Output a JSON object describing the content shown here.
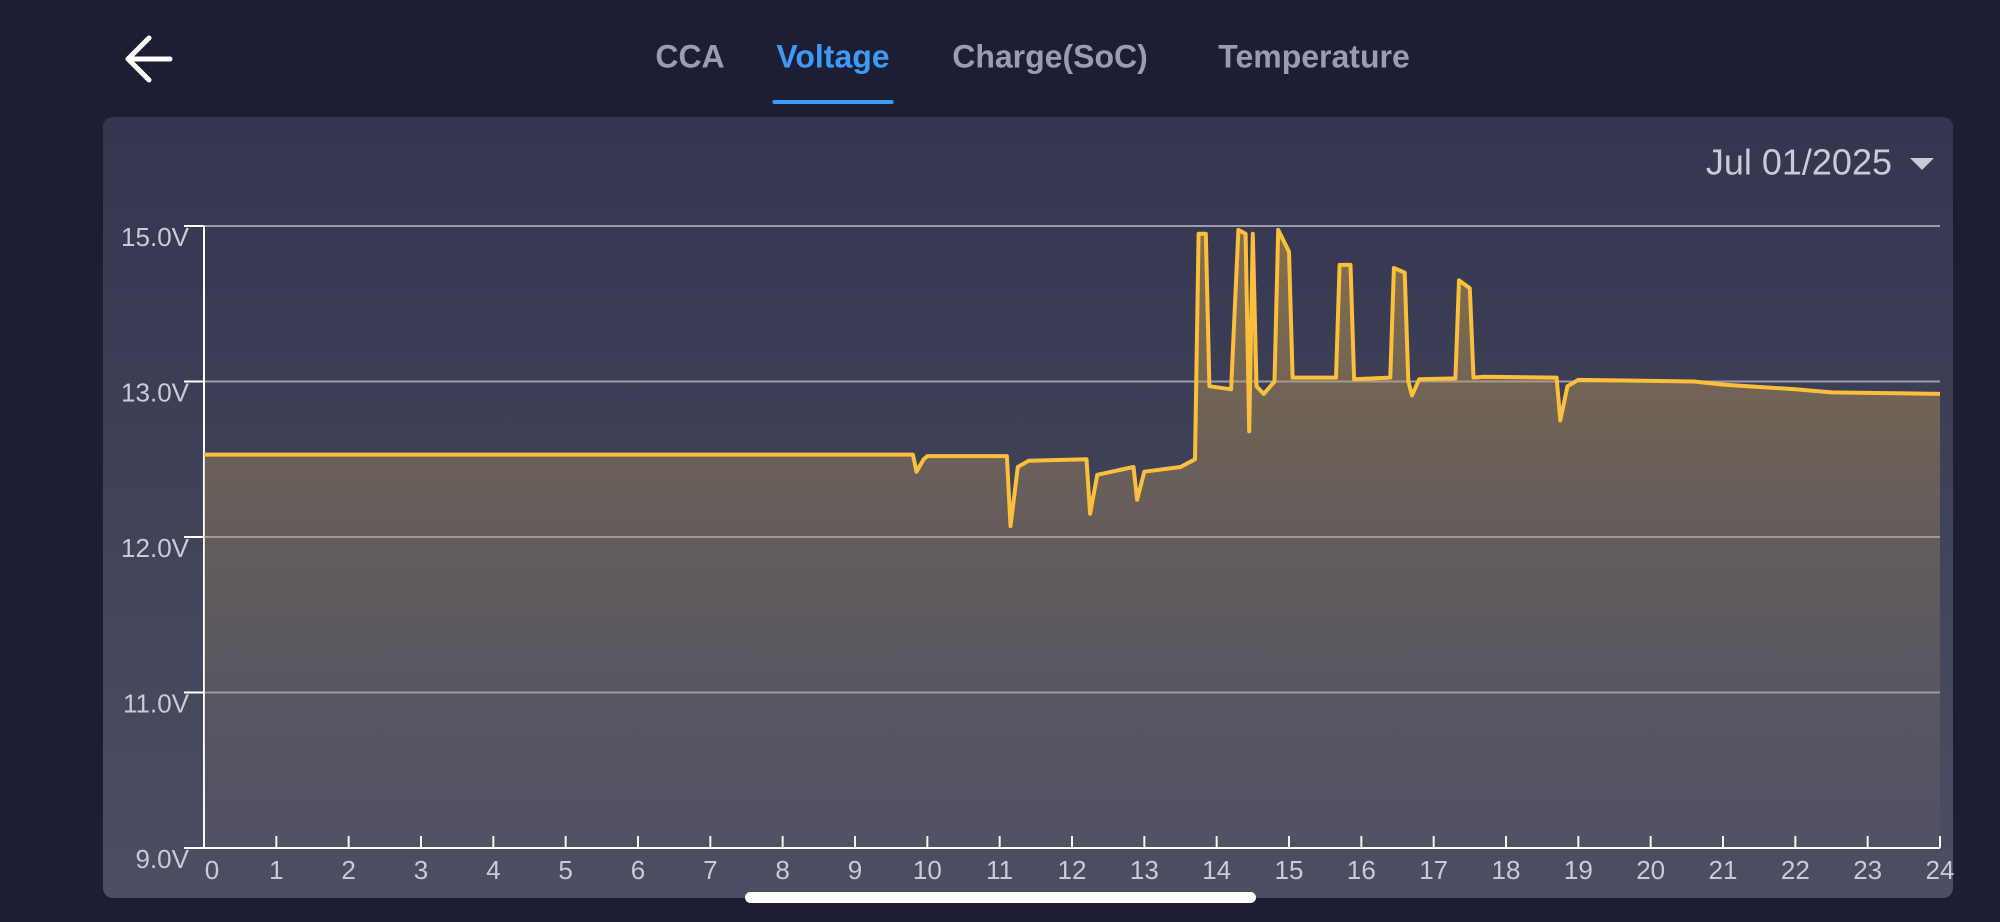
{
  "nav": {
    "tabs": [
      "CCA",
      "Voltage",
      "Charge(SoC)",
      "Temperature"
    ],
    "active_tab": 1
  },
  "date_picker": {
    "label": "Jul 01/2025"
  },
  "chart_data": {
    "type": "line",
    "x": [
      0,
      9.8,
      9.85,
      9.95,
      10,
      11.1,
      11.15,
      11.25,
      11.4,
      12.2,
      12.25,
      12.35,
      12.85,
      12.9,
      13.0,
      13.5,
      13.7,
      13.75,
      13.85,
      13.9,
      14.2,
      14.3,
      14.4,
      14.45,
      14.5,
      14.55,
      14.65,
      14.8,
      14.85,
      15.0,
      15.05,
      15.65,
      15.7,
      15.85,
      15.9,
      16.4,
      16.45,
      16.6,
      16.65,
      16.7,
      16.8,
      17.3,
      17.35,
      17.5,
      17.55,
      17.7,
      18.7,
      18.75,
      18.85,
      19,
      20.6,
      21,
      22,
      22.5,
      24
    ],
    "values": [
      12.53,
      12.53,
      12.42,
      12.5,
      12.52,
      12.52,
      12.07,
      12.45,
      12.49,
      12.5,
      12.15,
      12.4,
      12.45,
      12.24,
      12.42,
      12.45,
      12.5,
      14.9,
      14.9,
      12.97,
      12.95,
      14.95,
      14.9,
      12.68,
      14.9,
      12.97,
      12.92,
      13.0,
      14.95,
      14.67,
      13.05,
      13.05,
      14.5,
      14.5,
      13.03,
      13.05,
      14.46,
      14.4,
      13.0,
      12.91,
      13.03,
      13.04,
      14.3,
      14.2,
      13.05,
      13.06,
      13.05,
      12.75,
      12.97,
      13.02,
      13.0,
      12.98,
      12.95,
      12.93,
      12.92
    ],
    "color": "#fbbf3c",
    "xlim": [
      0,
      24
    ],
    "xticks": [
      0,
      1,
      2,
      3,
      4,
      5,
      6,
      7,
      8,
      9,
      10,
      11,
      12,
      13,
      14,
      15,
      16,
      17,
      18,
      19,
      20,
      21,
      22,
      23,
      24
    ],
    "ylim": [
      9,
      15
    ],
    "yticks": [
      {
        "value": 9,
        "label": "9.0V"
      },
      {
        "value": 11,
        "label": "11.0V"
      },
      {
        "value": 12,
        "label": "12.0V"
      },
      {
        "value": 13,
        "label": "13.0V"
      },
      {
        "value": 15,
        "label": "15.0V"
      }
    ],
    "grid": true
  }
}
